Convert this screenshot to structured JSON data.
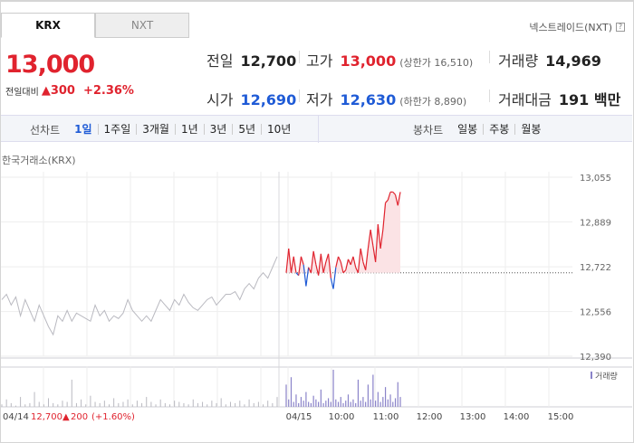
{
  "tabs": [
    {
      "label": "KRX",
      "active": true
    },
    {
      "label": "NXT",
      "active": false
    }
  ],
  "nxt_link": {
    "label": "넥스트레이드(NXT)",
    "help_icon": "question-icon",
    "help_glyph": "?"
  },
  "quote": {
    "price": "13,000",
    "change_label": "전일대비",
    "change_arrow": "▲",
    "change_value": "300",
    "change_pct": "+2.36%"
  },
  "stats": {
    "prev_close": {
      "label": "전일",
      "value": "12,700"
    },
    "open": {
      "label": "시가",
      "value": "12,690"
    },
    "high": {
      "label": "고가",
      "value": "13,000",
      "sub": "(상한가 16,510)"
    },
    "low": {
      "label": "저가",
      "value": "12,630",
      "sub": "(하한가 8,890)"
    },
    "volume": {
      "label": "거래량",
      "value": "14,969"
    },
    "amount": {
      "label": "거래대금",
      "value": "191 백만"
    }
  },
  "line_chart_tabs": {
    "title": "선차트",
    "items": [
      "1일",
      "1주일",
      "3개월",
      "1년",
      "3년",
      "5년",
      "10년"
    ],
    "selected": "1일"
  },
  "candle_chart_tabs": {
    "title": "봉차트",
    "items": [
      "일봉",
      "주봉",
      "월봉"
    ]
  },
  "exchange_label": "한국거래소(KRX)",
  "volume_legend": "거래량",
  "prev_day_caption": {
    "date": "04/14",
    "close": "12,700",
    "arrow": "▲",
    "change": "200",
    "pct": "(+1.60%)"
  },
  "colors": {
    "up": "#e0232e",
    "down": "#1f5bd6",
    "prev_day_line": "#b9b9c0",
    "fill": "#fbe3e5",
    "volume": "#8a83c9"
  },
  "chart_data": {
    "type": "line",
    "title": "",
    "y_ticks": [
      13055,
      12889,
      12722,
      12556,
      12390
    ],
    "y_tick_labels": [
      "13,055",
      "12,889",
      "12,722",
      "12,556",
      "12,390"
    ],
    "ylim": [
      12390,
      13055
    ],
    "reference_price": 12700,
    "x_tick_labels": [
      "04/15",
      "10:00",
      "11:00",
      "12:00",
      "13:00",
      "14:00",
      "15:00"
    ],
    "grid": true,
    "prev_day_series": [
      12600,
      12620,
      12580,
      12610,
      12540,
      12600,
      12560,
      12520,
      12580,
      12540,
      12500,
      12470,
      12540,
      12520,
      12560,
      12520,
      12550,
      12540,
      12530,
      12520,
      12580,
      12540,
      12560,
      12520,
      12540,
      12530,
      12550,
      12600,
      12560,
      12540,
      12520,
      12540,
      12520,
      12560,
      12600,
      12580,
      12560,
      12600,
      12580,
      12620,
      12590,
      12570,
      12560,
      12580,
      12600,
      12610,
      12580,
      12600,
      12620,
      12620,
      12630,
      12600,
      12640,
      12660,
      12640,
      12680,
      12700,
      12680,
      12720,
      12760
    ],
    "today_series": [
      12700,
      12790,
      12700,
      12760,
      12700,
      12690,
      12760,
      12730,
      12650,
      12720,
      12700,
      12780,
      12730,
      12690,
      12770,
      12700,
      12740,
      12770,
      12680,
      12640,
      12720,
      12760,
      12740,
      12700,
      12710,
      12750,
      12730,
      12760,
      12720,
      12700,
      12790,
      12740,
      12710,
      12790,
      12860,
      12800,
      12740,
      12880,
      12790,
      12860,
      12960,
      12970,
      13000,
      13000,
      12990,
      12950,
      13000
    ],
    "prev_day_volume": [
      2,
      6,
      3,
      1,
      8,
      2,
      3,
      12,
      4,
      2,
      7,
      3,
      2,
      5,
      4,
      22,
      3,
      6,
      2,
      9,
      4,
      3,
      5,
      2,
      7,
      3,
      4,
      6,
      2,
      5,
      3,
      8,
      4,
      2,
      6,
      3,
      2,
      5,
      4,
      3,
      2,
      6,
      3,
      4,
      2,
      5,
      3,
      7,
      2,
      4,
      3,
      5,
      2,
      6,
      3,
      4,
      2,
      5,
      3,
      8
    ],
    "today_volume": [
      18,
      6,
      24,
      4,
      10,
      3,
      8,
      5,
      12,
      4,
      3,
      9,
      6,
      4,
      14,
      3,
      5,
      7,
      4,
      30,
      6,
      4,
      8,
      3,
      5,
      10,
      4,
      6,
      3,
      22,
      5,
      8,
      4,
      18,
      6,
      26,
      5,
      12,
      4,
      8,
      16,
      6,
      10,
      4,
      7,
      20,
      8
    ]
  }
}
